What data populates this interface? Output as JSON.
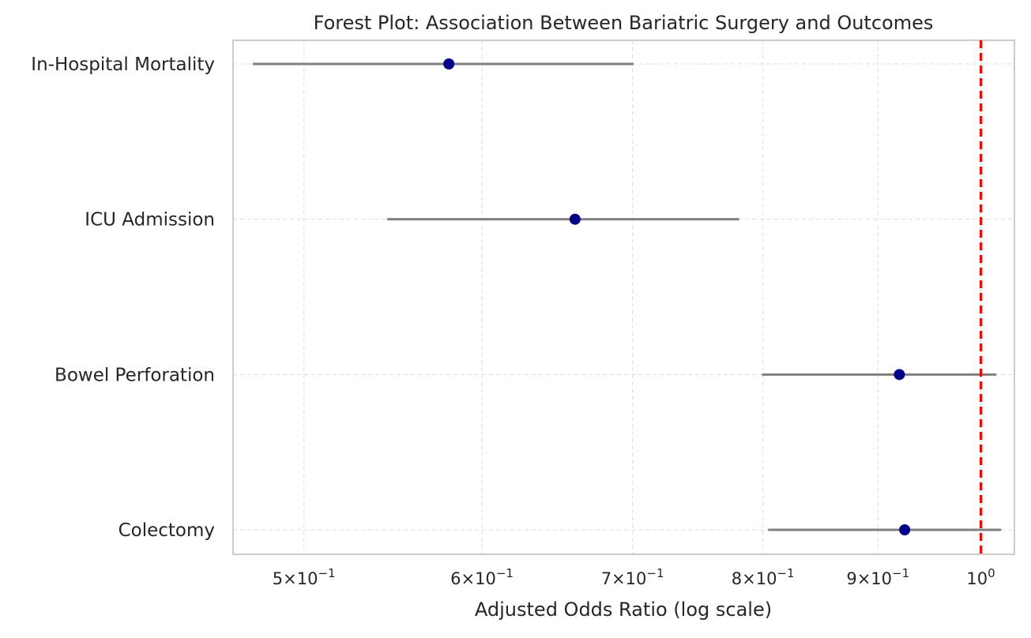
{
  "chart_data": {
    "type": "forest",
    "title": "Forest Plot: Association Between Bariatric Surgery and Outcomes",
    "xlabel": "Adjusted Odds Ratio (log scale)",
    "ylabel": "",
    "x_scale": "log",
    "xlim": [
      0.465,
      1.035
    ],
    "x_ticks": [
      {
        "value": 0.5,
        "mant": "5",
        "exp": "−1"
      },
      {
        "value": 0.6,
        "mant": "6",
        "exp": "−1"
      },
      {
        "value": 0.7,
        "mant": "7",
        "exp": "−1"
      },
      {
        "value": 0.8,
        "mant": "8",
        "exp": "−1"
      },
      {
        "value": 0.9,
        "mant": "9",
        "exp": "−1"
      },
      {
        "value": 1.0,
        "mant": "",
        "exp": "0"
      }
    ],
    "reference_line": {
      "value": 1.0,
      "color": "#ff0000",
      "style": "dashed"
    },
    "grid": true,
    "point_color": "#00008b",
    "ci_color": "#808080",
    "outcomes": [
      {
        "label": "In-Hospital Mortality",
        "or": 0.58,
        "ci_low": 0.475,
        "ci_high": 0.7
      },
      {
        "label": "ICU Admission",
        "or": 0.66,
        "ci_low": 0.545,
        "ci_high": 0.78
      },
      {
        "label": "Bowel Perforation",
        "or": 0.92,
        "ci_low": 0.8,
        "ci_high": 1.015
      },
      {
        "label": "Colectomy",
        "or": 0.925,
        "ci_low": 0.805,
        "ci_high": 1.02
      }
    ]
  }
}
